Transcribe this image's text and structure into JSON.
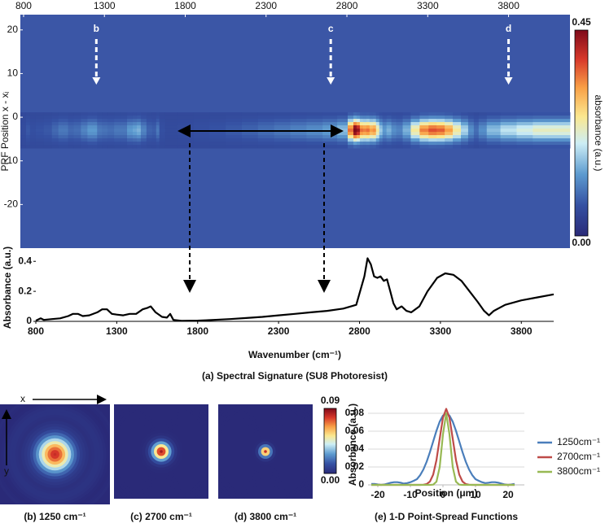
{
  "chart_data": [
    {
      "type": "heatmap",
      "y_label": "PRF Position x - xᵢ",
      "xlim": [
        780,
        4180
      ],
      "xticks": [
        800,
        1300,
        1800,
        2300,
        2800,
        3300,
        3800
      ],
      "ylim": [
        -30,
        23.5
      ],
      "yticks": [
        20,
        10,
        0,
        -10,
        -20
      ],
      "colorbar": {
        "label": "absorbance (a.u.)",
        "lim": [
          0,
          0.45
        ],
        "ticks": [
          {
            "value": 0,
            "label": "0.00"
          },
          {
            "value": 0.45,
            "label": "0.45"
          }
        ]
      },
      "annotations": [
        {
          "text": "b",
          "x": 1250
        },
        {
          "text": "c",
          "x": 2700
        },
        {
          "text": "d",
          "x": 3800
        }
      ]
    },
    {
      "type": "line",
      "x_label": "Wavenumber (cm⁻¹)",
      "y_label": "Absorbance (a.u.)",
      "caption": "(a)  Spectral Signature (SU8 Photoresist)",
      "xlim": [
        800,
        4000
      ],
      "xticks": [
        800,
        1300,
        1800,
        2300,
        2800,
        3300,
        3800
      ],
      "ylim": [
        0,
        0.45
      ],
      "yticks": [
        0,
        0.2,
        0.4
      ],
      "x": [
        800,
        830,
        850,
        900,
        950,
        1000,
        1030,
        1060,
        1090,
        1130,
        1180,
        1210,
        1240,
        1270,
        1300,
        1340,
        1380,
        1420,
        1460,
        1490,
        1510,
        1540,
        1580,
        1610,
        1630,
        1650,
        1700,
        1800,
        1900,
        2000,
        2100,
        2200,
        2300,
        2400,
        2500,
        2600,
        2700,
        2780,
        2830,
        2850,
        2870,
        2890,
        2910,
        2930,
        2950,
        2970,
        2990,
        3010,
        3030,
        3060,
        3090,
        3120,
        3170,
        3220,
        3280,
        3330,
        3380,
        3430,
        3480,
        3530,
        3570,
        3600,
        3630,
        3700,
        3800,
        3900,
        4000
      ],
      "series": [
        {
          "color": "#000000",
          "values": [
            0.005,
            0.02,
            0.01,
            0.015,
            0.02,
            0.035,
            0.05,
            0.05,
            0.035,
            0.04,
            0.06,
            0.08,
            0.08,
            0.05,
            0.045,
            0.04,
            0.05,
            0.05,
            0.08,
            0.09,
            0.1,
            0.06,
            0.03,
            0.025,
            0.05,
            0.01,
            0.003,
            0.005,
            0.01,
            0.015,
            0.022,
            0.03,
            0.04,
            0.05,
            0.06,
            0.07,
            0.085,
            0.11,
            0.3,
            0.42,
            0.38,
            0.3,
            0.29,
            0.3,
            0.27,
            0.28,
            0.2,
            0.12,
            0.08,
            0.1,
            0.07,
            0.06,
            0.1,
            0.2,
            0.29,
            0.32,
            0.31,
            0.27,
            0.2,
            0.13,
            0.07,
            0.04,
            0.07,
            0.11,
            0.14,
            0.16,
            0.18
          ]
        }
      ]
    },
    {
      "type": "image",
      "x_label": "x",
      "y_label": "y",
      "captions": [
        "(b) 1250 cm⁻¹",
        "(c) 2700 cm⁻¹",
        "(d) 3800 cm⁻¹"
      ],
      "colorbar": {
        "lim": [
          0,
          0.09
        ],
        "ticks": [
          {
            "value": 0,
            "label": "0.00"
          },
          {
            "value": 0.09,
            "label": "0.09"
          }
        ]
      }
    },
    {
      "type": "line",
      "x_label": "Position (μm)",
      "y_label": "Absorbance (a.u.)",
      "caption": "(e) 1-D Point-Spread Functions",
      "xlim": [
        -23,
        25
      ],
      "xticks": [
        -20,
        -10,
        0,
        10,
        20
      ],
      "ylim": [
        0,
        0.09
      ],
      "yticks": [
        0,
        0.02,
        0.04,
        0.06,
        0.08
      ],
      "grid": true,
      "legend": "right",
      "x": [
        -22,
        -21,
        -20,
        -19,
        -18,
        -17,
        -16,
        -15,
        -14,
        -13,
        -12,
        -11,
        -10,
        -9,
        -8,
        -7,
        -6,
        -5,
        -4,
        -3,
        -2,
        -1,
        0,
        1,
        2,
        3,
        4,
        5,
        6,
        7,
        8,
        9,
        10,
        11,
        12,
        13,
        14,
        15,
        16,
        17,
        18,
        19,
        20,
        21,
        22
      ],
      "series": [
        {
          "name": "1250cm⁻¹",
          "color": "#4a7ebb",
          "values": [
            0.001,
            0.001,
            0.0005,
            0,
            0.0005,
            0.0015,
            0.0025,
            0.003,
            0.003,
            0.0025,
            0.0015,
            0.002,
            0.003,
            0.0045,
            0.0064,
            0.0108,
            0.0173,
            0.0259,
            0.0366,
            0.0485,
            0.0605,
            0.0706,
            0.0775,
            0.08,
            0.0775,
            0.0706,
            0.0605,
            0.0485,
            0.0366,
            0.0259,
            0.0173,
            0.0108,
            0.0064,
            0.0045,
            0.003,
            0.002,
            0.0025,
            0.003,
            0.003,
            0.0025,
            0.0015,
            0.0005,
            0,
            0.0005,
            0.001
          ]
        },
        {
          "name": "2700cm⁻¹",
          "color": "#be4b48",
          "values": [
            0,
            0,
            0,
            0,
            0,
            0,
            0,
            0,
            0,
            0,
            0,
            0,
            0,
            0,
            0,
            0,
            0.0002,
            0.0009,
            0.0037,
            0.0115,
            0.0276,
            0.0516,
            0.075,
            0.085,
            0.075,
            0.0516,
            0.0276,
            0.0115,
            0.0037,
            0.0009,
            0.0002,
            0,
            0,
            0,
            0,
            0,
            0,
            0,
            0,
            0,
            0,
            0,
            0,
            0,
            0
          ]
        },
        {
          "name": "3800cm⁻¹",
          "color": "#98b954",
          "values": [
            0,
            0,
            0,
            0,
            0,
            0,
            0,
            0,
            0,
            0,
            0,
            0,
            0,
            0,
            0,
            0,
            0,
            0,
            0,
            0.0003,
            0.0035,
            0.02,
            0.0564,
            0.08,
            0.0564,
            0.02,
            0.0035,
            0.0003,
            0,
            0,
            0,
            0,
            0,
            0,
            0,
            0,
            0,
            0,
            0,
            0,
            0,
            0,
            0,
            0,
            0
          ]
        }
      ]
    }
  ]
}
